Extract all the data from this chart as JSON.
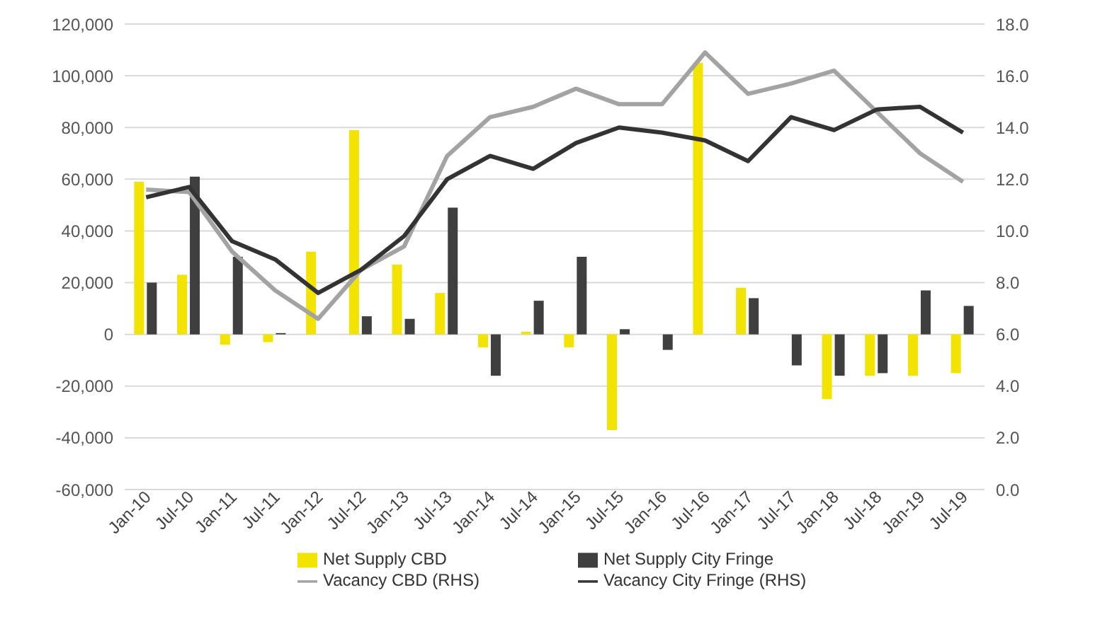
{
  "chart_data": {
    "type": "bar",
    "categories": [
      "Jan-10",
      "Jul-10",
      "Jan-11",
      "Jul-11",
      "Jan-12",
      "Jul-12",
      "Jan-13",
      "Jul-13",
      "Jan-14",
      "Jul-14",
      "Jan-15",
      "Jul-15",
      "Jan-16",
      "Jul-16",
      "Jan-17",
      "Jul-17",
      "Jan-18",
      "Jul-18",
      "Jan-19",
      "Jul-19"
    ],
    "series": [
      {
        "name": "Net Supply CBD",
        "color": "#f2e300",
        "values": [
          59000,
          23000,
          -4000,
          -3000,
          32000,
          79000,
          27000,
          16000,
          -5000,
          1000,
          -5000,
          -37000,
          0,
          105000,
          18000,
          0,
          -25000,
          -16000,
          -16000,
          -15000
        ]
      },
      {
        "name": "Net Supply City Fringe",
        "color": "#3f3f3f",
        "values": [
          20000,
          61000,
          30000,
          500,
          0,
          7000,
          6000,
          49000,
          -16000,
          13000,
          30000,
          2000,
          -6000,
          0,
          14000,
          -12000,
          -16000,
          -15000,
          17000,
          11000
        ]
      },
      {
        "name": "Vacancy CBD (RHS)",
        "type": "line",
        "axis": "y2",
        "color": "#a3a3a3",
        "values": [
          11.6,
          11.5,
          9.2,
          7.7,
          6.6,
          8.5,
          9.4,
          12.9,
          14.4,
          14.8,
          15.5,
          14.9,
          14.9,
          16.9,
          15.3,
          15.7,
          16.2,
          14.6,
          13.0,
          11.9
        ]
      },
      {
        "name": "Vacancy City Fringe (RHS)",
        "type": "line",
        "axis": "y2",
        "color": "#333333",
        "values": [
          11.3,
          11.7,
          9.6,
          8.9,
          7.6,
          8.5,
          9.8,
          12.0,
          12.9,
          12.4,
          13.4,
          14.0,
          13.8,
          13.5,
          12.7,
          14.4,
          13.9,
          14.7,
          14.8,
          13.8
        ]
      }
    ],
    "ylim": [
      -60000,
      120000
    ],
    "yticks": [
      {
        "value": -60000,
        "label": "-60,000"
      },
      {
        "value": -40000,
        "label": "-40,000"
      },
      {
        "value": -20000,
        "label": "-20,000"
      },
      0,
      {
        "value": 20000,
        "label": "20,000"
      },
      {
        "value": 40000,
        "label": "40,000"
      },
      {
        "value": 60000,
        "label": "60,000"
      },
      {
        "value": 80000,
        "label": "80,000"
      },
      {
        "value": 100000,
        "label": "100,000"
      },
      {
        "value": 120000,
        "label": "120,000"
      }
    ],
    "y2lim": [
      0,
      18
    ],
    "y2ticks": [
      {
        "value": 0,
        "label": "0.0"
      },
      {
        "value": 2,
        "label": "2.0"
      },
      {
        "value": 4,
        "label": "4.0"
      },
      {
        "value": 6,
        "label": "6.0"
      },
      {
        "value": 8,
        "label": "8.0"
      },
      {
        "value": 10,
        "label": "10.0"
      },
      {
        "value": 12,
        "label": "12.0"
      },
      {
        "value": 14,
        "label": "14.0"
      },
      {
        "value": 16,
        "label": "16.0"
      },
      {
        "value": 18,
        "label": "18.0"
      }
    ],
    "grid": "y",
    "legend": "bottom",
    "marker": "none",
    "line_style": "solid"
  }
}
